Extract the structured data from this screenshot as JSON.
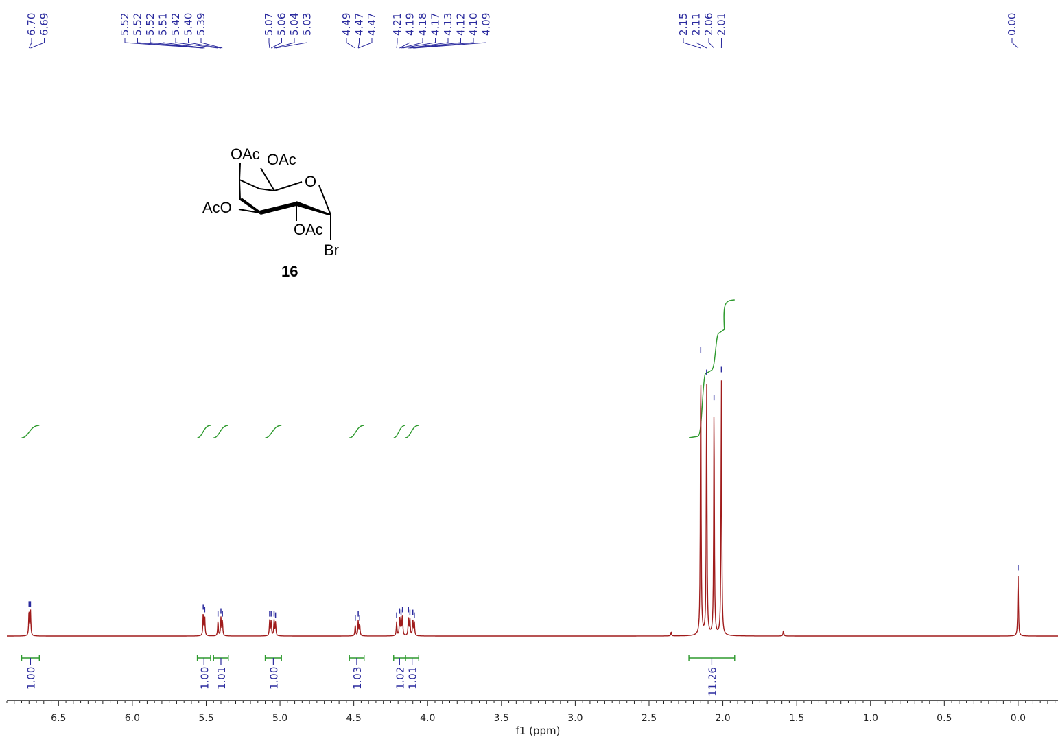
{
  "chart_data": {
    "type": "line",
    "title": "",
    "xlabel": "f1 (ppm)",
    "ylabel": "",
    "xlim": [
      6.85,
      -0.27
    ],
    "x_reversed": true,
    "x_ticks": [
      "6.5",
      "6.0",
      "5.5",
      "5.0",
      "4.5",
      "4.0",
      "3.5",
      "3.0",
      "2.5",
      "2.0",
      "1.5",
      "1.0",
      "0.5",
      "0.0"
    ],
    "x_tick_values": [
      6.5,
      6.0,
      5.5,
      5.0,
      4.5,
      4.0,
      3.5,
      3.0,
      2.5,
      2.0,
      1.5,
      1.0,
      0.5,
      0.0
    ],
    "series_color": "#a01c1c",
    "integral_color": "#2e9a2e",
    "label_color": "#2b2b9e",
    "peak_labels": [
      "6.70",
      "6.69",
      "5.52",
      "5.52",
      "5.52",
      "5.51",
      "5.42",
      "5.40",
      "5.39",
      "5.07",
      "5.06",
      "5.04",
      "5.03",
      "4.49",
      "4.47",
      "4.47",
      "4.21",
      "4.19",
      "4.18",
      "4.17",
      "4.13",
      "4.12",
      "4.10",
      "4.09",
      "2.15",
      "2.11",
      "2.06",
      "2.01",
      "0.00"
    ],
    "peaks": [
      {
        "ppm": 6.7,
        "h": 0.09
      },
      {
        "ppm": 6.69,
        "h": 0.09
      },
      {
        "ppm": 5.52,
        "h": 0.08
      },
      {
        "ppm": 5.51,
        "h": 0.07
      },
      {
        "ppm": 5.42,
        "h": 0.055
      },
      {
        "ppm": 5.4,
        "h": 0.065
      },
      {
        "ppm": 5.39,
        "h": 0.055
      },
      {
        "ppm": 5.07,
        "h": 0.055
      },
      {
        "ppm": 5.06,
        "h": 0.055
      },
      {
        "ppm": 5.04,
        "h": 0.055
      },
      {
        "ppm": 5.03,
        "h": 0.05
      },
      {
        "ppm": 4.49,
        "h": 0.04
      },
      {
        "ppm": 4.47,
        "h": 0.055
      },
      {
        "ppm": 4.46,
        "h": 0.04
      },
      {
        "ppm": 4.21,
        "h": 0.05
      },
      {
        "ppm": 4.19,
        "h": 0.065
      },
      {
        "ppm": 4.18,
        "h": 0.06
      },
      {
        "ppm": 4.17,
        "h": 0.07
      },
      {
        "ppm": 4.13,
        "h": 0.07
      },
      {
        "ppm": 4.12,
        "h": 0.06
      },
      {
        "ppm": 4.1,
        "h": 0.06
      },
      {
        "ppm": 4.09,
        "h": 0.05
      },
      {
        "ppm": 2.15,
        "h": 1.0
      },
      {
        "ppm": 2.11,
        "h": 0.92
      },
      {
        "ppm": 2.06,
        "h": 0.83
      },
      {
        "ppm": 2.01,
        "h": 0.93
      },
      {
        "ppm": 2.35,
        "h": 0.015
      },
      {
        "ppm": 1.59,
        "h": 0.02
      },
      {
        "ppm": 0.0,
        "h": 0.22
      }
    ],
    "integrals": [
      {
        "from": 6.75,
        "to": 6.63,
        "value": "1.00"
      },
      {
        "from": 5.56,
        "to": 5.47,
        "value": "1.00"
      },
      {
        "from": 5.45,
        "to": 5.35,
        "value": "1.01"
      },
      {
        "from": 5.1,
        "to": 4.99,
        "value": "1.00"
      },
      {
        "from": 4.53,
        "to": 4.43,
        "value": "1.03"
      },
      {
        "from": 4.23,
        "to": 4.15,
        "value": "1.02"
      },
      {
        "from": 4.15,
        "to": 4.06,
        "value": "1.01"
      },
      {
        "from": 2.23,
        "to": 1.92,
        "value": "11.26"
      }
    ]
  },
  "structure": {
    "substituents": [
      "OAc",
      "OAc",
      "AcO",
      "OAc",
      "O",
      "Br"
    ],
    "compound_number": "16"
  }
}
